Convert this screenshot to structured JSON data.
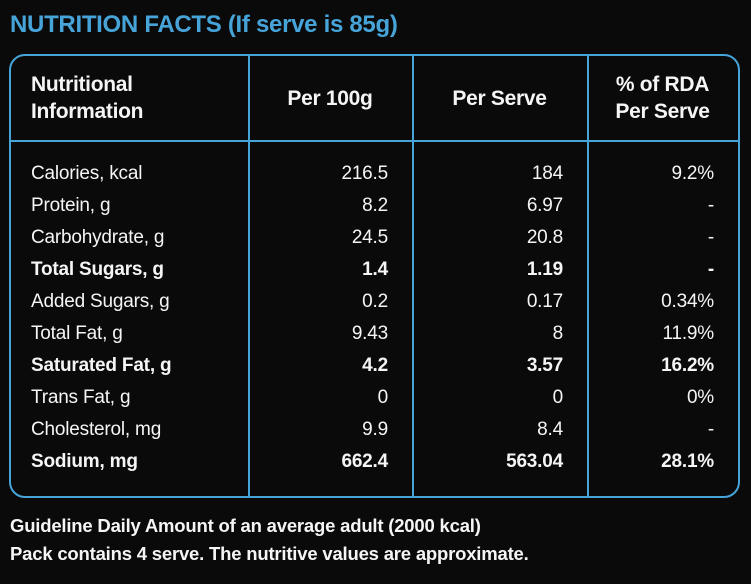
{
  "title": "NUTRITION FACTS (If serve is 85g)",
  "colors": {
    "background": "#0a0a0a",
    "accent_blue": "#47a4d9",
    "text": "#f5f5f5"
  },
  "table": {
    "headers": [
      {
        "lines": [
          "Nutritional",
          "Information"
        ]
      },
      {
        "lines": [
          "Per 100g"
        ]
      },
      {
        "lines": [
          "Per Serve"
        ]
      },
      {
        "lines": [
          "% of RDA",
          "Per Serve"
        ]
      }
    ],
    "rows": [
      {
        "label": "Calories, kcal",
        "per_100g": "216.5",
        "per_serve": "184",
        "rda": "9.2%",
        "bold": false
      },
      {
        "label": "Protein, g",
        "per_100g": "8.2",
        "per_serve": "6.97",
        "rda": "-",
        "bold": false
      },
      {
        "label": "Carbohydrate, g",
        "per_100g": "24.5",
        "per_serve": "20.8",
        "rda": "-",
        "bold": false
      },
      {
        "label": "Total Sugars, g",
        "per_100g": "1.4",
        "per_serve": "1.19",
        "rda": "-",
        "bold": true
      },
      {
        "label": "Added Sugars, g",
        "per_100g": "0.2",
        "per_serve": "0.17",
        "rda": "0.34%",
        "bold": false
      },
      {
        "label": "Total Fat, g",
        "per_100g": "9.43",
        "per_serve": "8",
        "rda": "11.9%",
        "bold": false
      },
      {
        "label": "Saturated Fat, g",
        "per_100g": "4.2",
        "per_serve": "3.57",
        "rda": "16.2%",
        "bold": true
      },
      {
        "label": "Trans Fat, g",
        "per_100g": "0",
        "per_serve": "0",
        "rda": "0%",
        "bold": false
      },
      {
        "label": "Cholesterol, mg",
        "per_100g": "9.9",
        "per_serve": "8.4",
        "rda": "-",
        "bold": false
      },
      {
        "label": "Sodium, mg",
        "per_100g": "662.4",
        "per_serve": "563.04",
        "rda": "28.1%",
        "bold": true
      }
    ]
  },
  "footer": {
    "line1": "Guideline Daily Amount of an average adult (2000 kcal)",
    "line2": "Pack contains 4 serve. The nutritive values are approximate."
  }
}
